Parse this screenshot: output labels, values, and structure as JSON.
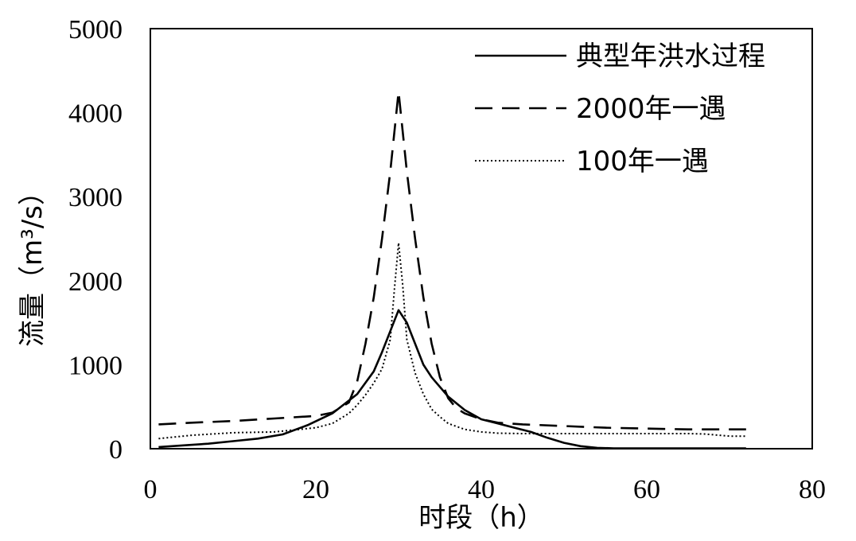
{
  "chart_data": {
    "type": "line",
    "xlabel": "时段（h）",
    "ylabel": "流量（m³/s）",
    "xlim": [
      0,
      80
    ],
    "ylim": [
      0,
      5000
    ],
    "xticks": [
      "0",
      "20",
      "40",
      "60",
      "80"
    ],
    "yticks": [
      "0",
      "1000",
      "2000",
      "3000",
      "4000",
      "5000"
    ],
    "grid": false,
    "legend_position": "top-right",
    "series": [
      {
        "name": "典型年洪水过程",
        "style": "solid",
        "color": "#000000",
        "x": [
          1,
          4,
          7,
          10,
          13,
          16,
          19,
          22,
          25,
          27,
          28,
          29,
          30,
          31,
          32,
          33,
          34,
          36,
          38,
          40,
          42,
          44,
          46,
          48,
          50,
          52,
          54,
          56,
          60,
          65,
          70,
          72
        ],
        "y": [
          20,
          40,
          60,
          90,
          120,
          170,
          280,
          420,
          650,
          920,
          1150,
          1400,
          1650,
          1500,
          1250,
          1000,
          850,
          620,
          460,
          350,
          300,
          250,
          200,
          130,
          70,
          30,
          10,
          5,
          5,
          5,
          5,
          5
        ]
      },
      {
        "name": "2000年一遇",
        "style": "dashed",
        "color": "#000000",
        "x": [
          1,
          5,
          10,
          15,
          20,
          22,
          24,
          25,
          26,
          27,
          28,
          29,
          30,
          31,
          32,
          33,
          34,
          35,
          36,
          37,
          38,
          40,
          42,
          45,
          50,
          55,
          60,
          65,
          70,
          72
        ],
        "y": [
          290,
          310,
          330,
          360,
          390,
          430,
          550,
          800,
          1250,
          1800,
          2500,
          3300,
          4250,
          3300,
          2500,
          1800,
          1250,
          850,
          600,
          480,
          420,
          350,
          310,
          290,
          270,
          250,
          240,
          230,
          230,
          230
        ]
      },
      {
        "name": "100年一遇",
        "style": "dotted",
        "color": "#000000",
        "x": [
          1,
          5,
          10,
          15,
          20,
          22,
          24,
          25,
          26,
          27,
          28,
          29,
          29.5,
          30,
          30.5,
          31,
          32,
          33,
          34,
          35,
          36,
          38,
          40,
          42,
          45,
          50,
          55,
          60,
          65,
          67,
          70,
          72
        ],
        "y": [
          120,
          160,
          190,
          200,
          250,
          300,
          420,
          520,
          640,
          780,
          950,
          1300,
          1900,
          2450,
          1950,
          1300,
          900,
          650,
          470,
          380,
          300,
          230,
          200,
          185,
          180,
          180,
          180,
          180,
          180,
          175,
          150,
          150
        ]
      }
    ]
  }
}
